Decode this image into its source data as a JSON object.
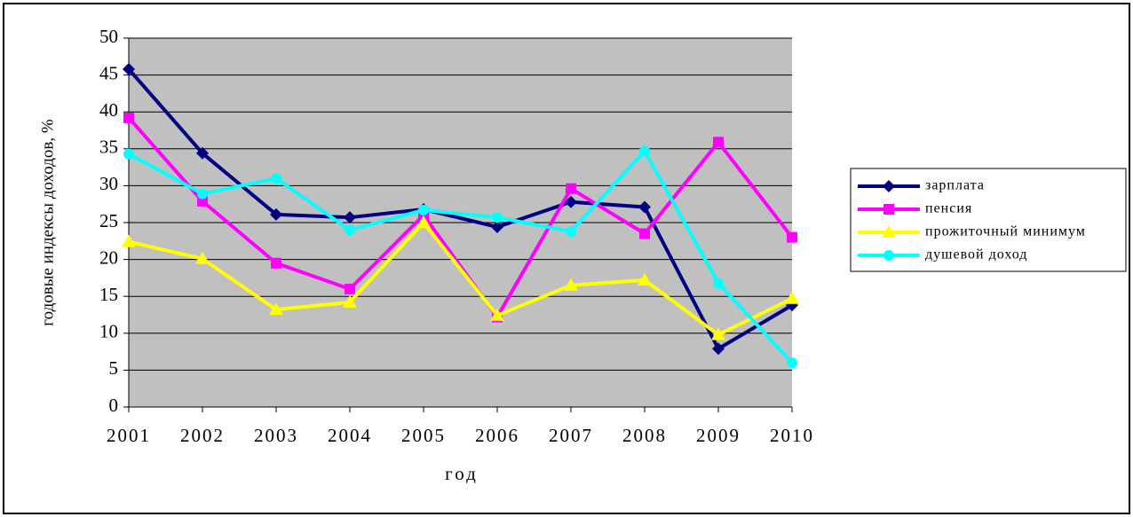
{
  "chart_data": {
    "type": "line",
    "x_label": "год",
    "y_label": "годовые индексы доходов, %",
    "categories": [
      "2001",
      "2002",
      "2003",
      "2004",
      "2005",
      "2006",
      "2007",
      "2008",
      "2009",
      "2010"
    ],
    "series": [
      {
        "name": "зарплата",
        "color": "#000080",
        "marker": "diamond",
        "values": [
          45.8,
          34.4,
          26.1,
          25.7,
          26.8,
          24.4,
          27.8,
          27.1,
          7.9,
          13.8
        ]
      },
      {
        "name": "пенсия",
        "color": "#FF00FF",
        "marker": "square",
        "values": [
          39.2,
          27.9,
          19.5,
          16.0,
          26.0,
          12.2,
          29.6,
          23.5,
          35.9,
          23.0
        ]
      },
      {
        "name": "прожиточный минимум",
        "color": "#FFFF00",
        "marker": "triangle",
        "values": [
          22.4,
          20.1,
          13.2,
          14.2,
          25.0,
          12.4,
          16.5,
          17.2,
          9.8,
          14.7
        ]
      },
      {
        "name": "душевой доход",
        "color": "#00FFFF",
        "marker": "circle",
        "values": [
          34.3,
          28.9,
          31.0,
          24.0,
          26.7,
          25.7,
          23.8,
          34.7,
          16.8,
          6.0
        ]
      }
    ],
    "ylim": [
      0,
      50
    ],
    "yticks": [
      0,
      5,
      10,
      15,
      20,
      25,
      30,
      35,
      40,
      45,
      50
    ],
    "grid": true,
    "legend": "right"
  }
}
